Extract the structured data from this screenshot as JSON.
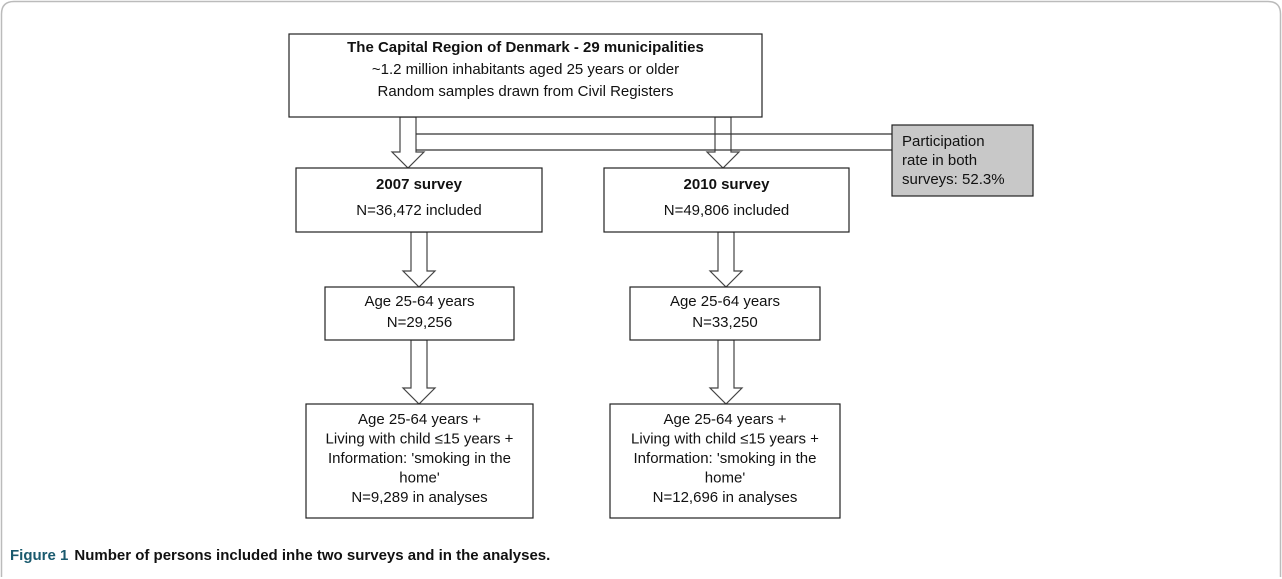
{
  "nodes": [
    {
      "lines": [
        "The Capital Region of Denmark - 29 municipalities",
        "~1.2 million inhabitants aged 25 years or older",
        "Random samples drawn from Civil Registers"
      ]
    },
    {
      "lines": [
        "Participation",
        "rate in both",
        "surveys: 52.3%"
      ]
    },
    {
      "lines": [
        "2007 survey",
        "N=36,472 included"
      ]
    },
    {
      "lines": [
        "2010 survey",
        "N=49,806 included"
      ]
    },
    {
      "lines": [
        "Age 25-64 years",
        "N=29,256"
      ]
    },
    {
      "lines": [
        "Age 25-64 years",
        "N=33,250"
      ]
    },
    {
      "lines": [
        "Age 25-64 years +",
        "Living with child ≤15 years +",
        "Information: 'smoking in the",
        "home'",
        "N=9,289 in analyses"
      ]
    },
    {
      "lines": [
        "Age 25-64 years +",
        "Living with child ≤15 years +",
        "Information: 'smoking in the",
        "home'",
        "N=12,696 in analyses"
      ]
    }
  ],
  "caption": {
    "label": "Figure 1",
    "text": "Number of persons included inhe two surveys and in the analyses."
  }
}
